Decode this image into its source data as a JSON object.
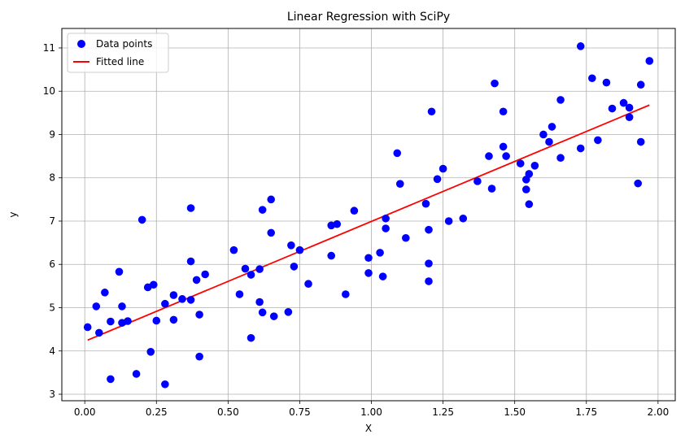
{
  "chart_data": {
    "type": "scatter",
    "title": "Linear Regression with SciPy",
    "xlabel": "X",
    "ylabel": "y",
    "xlim": [
      -0.08,
      2.06
    ],
    "ylim": [
      2.85,
      11.45
    ],
    "xticks": [
      0.0,
      0.25,
      0.5,
      0.75,
      1.0,
      1.25,
      1.5,
      1.75,
      2.0
    ],
    "xtick_labels": [
      "0.00",
      "0.25",
      "0.50",
      "0.75",
      "1.00",
      "1.25",
      "1.50",
      "1.75",
      "2.00"
    ],
    "yticks": [
      3,
      4,
      5,
      6,
      7,
      8,
      9,
      10,
      11
    ],
    "ytick_labels": [
      "3",
      "4",
      "5",
      "6",
      "7",
      "8",
      "9",
      "10",
      "11"
    ],
    "grid": true,
    "legend_position": "top-left",
    "series": [
      {
        "name": "Data points",
        "kind": "scatter",
        "color": "#0000ff",
        "points": [
          [
            0.01,
            4.55
          ],
          [
            0.04,
            5.03
          ],
          [
            0.05,
            4.42
          ],
          [
            0.07,
            5.35
          ],
          [
            0.09,
            3.35
          ],
          [
            0.09,
            4.68
          ],
          [
            0.12,
            5.83
          ],
          [
            0.13,
            5.03
          ],
          [
            0.13,
            4.65
          ],
          [
            0.15,
            4.69
          ],
          [
            0.18,
            3.47
          ],
          [
            0.2,
            7.03
          ],
          [
            0.22,
            5.47
          ],
          [
            0.23,
            3.98
          ],
          [
            0.24,
            5.53
          ],
          [
            0.25,
            4.7
          ],
          [
            0.28,
            3.23
          ],
          [
            0.28,
            5.09
          ],
          [
            0.31,
            5.29
          ],
          [
            0.31,
            4.72
          ],
          [
            0.34,
            5.2
          ],
          [
            0.37,
            5.18
          ],
          [
            0.37,
            6.07
          ],
          [
            0.37,
            7.3
          ],
          [
            0.39,
            5.64
          ],
          [
            0.4,
            4.84
          ],
          [
            0.4,
            3.87
          ],
          [
            0.42,
            5.77
          ],
          [
            0.52,
            6.33
          ],
          [
            0.54,
            5.31
          ],
          [
            0.56,
            5.9
          ],
          [
            0.58,
            4.3
          ],
          [
            0.58,
            5.76
          ],
          [
            0.61,
            5.13
          ],
          [
            0.61,
            5.89
          ],
          [
            0.62,
            7.26
          ],
          [
            0.62,
            4.89
          ],
          [
            0.65,
            7.5
          ],
          [
            0.65,
            6.73
          ],
          [
            0.66,
            4.8
          ],
          [
            0.71,
            4.9
          ],
          [
            0.72,
            6.44
          ],
          [
            0.73,
            5.95
          ],
          [
            0.75,
            6.33
          ],
          [
            0.78,
            5.55
          ],
          [
            0.86,
            6.9
          ],
          [
            0.86,
            6.2
          ],
          [
            0.88,
            6.93
          ],
          [
            0.91,
            5.31
          ],
          [
            0.94,
            7.24
          ],
          [
            0.99,
            6.15
          ],
          [
            0.99,
            5.8
          ],
          [
            1.03,
            6.27
          ],
          [
            1.04,
            5.72
          ],
          [
            1.05,
            7.06
          ],
          [
            1.05,
            6.83
          ],
          [
            1.09,
            8.57
          ],
          [
            1.1,
            7.86
          ],
          [
            1.12,
            6.61
          ],
          [
            1.19,
            7.4
          ],
          [
            1.2,
            6.02
          ],
          [
            1.2,
            5.61
          ],
          [
            1.2,
            6.8
          ],
          [
            1.21,
            9.53
          ],
          [
            1.23,
            7.97
          ],
          [
            1.25,
            8.21
          ],
          [
            1.27,
            7.0
          ],
          [
            1.32,
            7.06
          ],
          [
            1.37,
            7.92
          ],
          [
            1.41,
            8.5
          ],
          [
            1.42,
            7.75
          ],
          [
            1.43,
            10.18
          ],
          [
            1.46,
            8.72
          ],
          [
            1.46,
            9.53
          ],
          [
            1.47,
            8.5
          ],
          [
            1.52,
            8.33
          ],
          [
            1.54,
            7.73
          ],
          [
            1.54,
            7.96
          ],
          [
            1.55,
            8.09
          ],
          [
            1.55,
            7.39
          ],
          [
            1.57,
            8.28
          ],
          [
            1.6,
            9.0
          ],
          [
            1.62,
            8.83
          ],
          [
            1.63,
            9.18
          ],
          [
            1.66,
            9.8
          ],
          [
            1.66,
            8.46
          ],
          [
            1.73,
            8.68
          ],
          [
            1.73,
            11.04
          ],
          [
            1.77,
            10.3
          ],
          [
            1.79,
            8.87
          ],
          [
            1.82,
            10.2
          ],
          [
            1.84,
            9.6
          ],
          [
            1.88,
            9.73
          ],
          [
            1.9,
            9.62
          ],
          [
            1.9,
            9.4
          ],
          [
            1.93,
            7.87
          ],
          [
            1.94,
            8.83
          ],
          [
            1.94,
            10.15
          ],
          [
            1.97,
            10.7
          ]
        ]
      },
      {
        "name": "Fitted line",
        "kind": "line",
        "color": "#ff0000",
        "x": [
          0.01,
          1.97
        ],
        "y": [
          4.25,
          9.68
        ]
      }
    ]
  }
}
